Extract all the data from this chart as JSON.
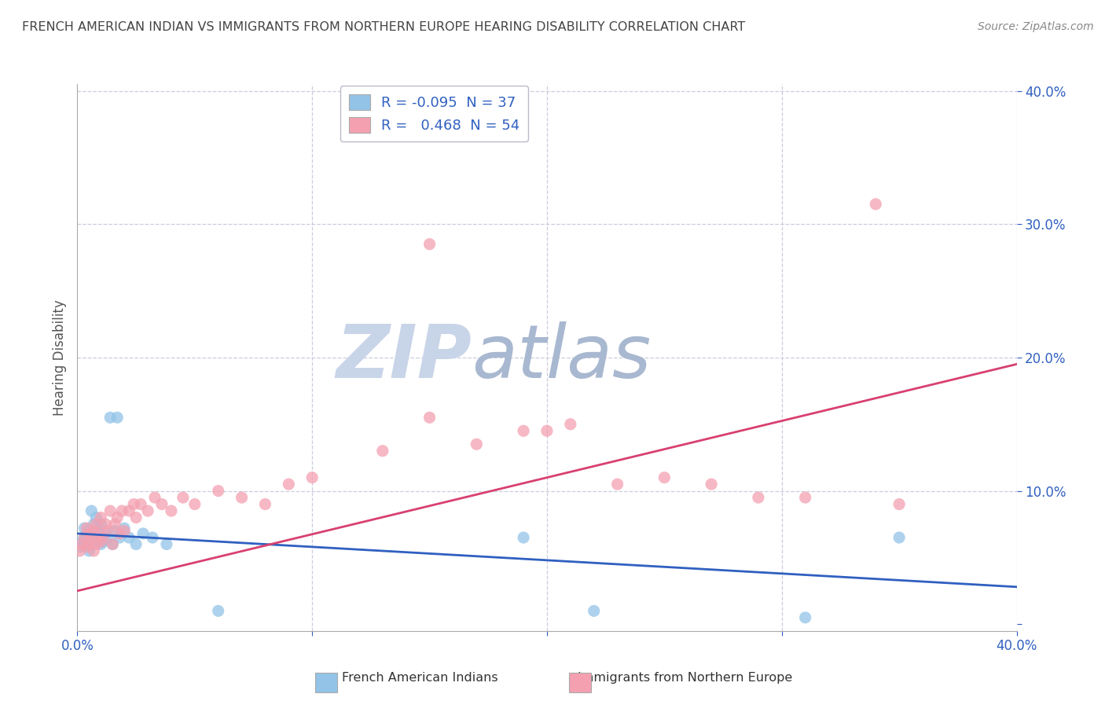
{
  "title": "FRENCH AMERICAN INDIAN VS IMMIGRANTS FROM NORTHERN EUROPE HEARING DISABILITY CORRELATION CHART",
  "source": "Source: ZipAtlas.com",
  "ylabel": "Hearing Disability",
  "xlim": [
    0.0,
    0.4
  ],
  "ylim": [
    -0.005,
    0.405
  ],
  "legend_R1": "-0.095",
  "legend_N1": "37",
  "legend_R2": "0.468",
  "legend_N2": "54",
  "blue_color": "#93c4e8",
  "pink_color": "#f4a0b0",
  "blue_line_color": "#3060c0",
  "pink_line_color": "#d84070",
  "text_color": "#3060c0",
  "title_color": "#444444",
  "watermark_ZIP_color": "#c8d4e8",
  "watermark_atlas_color": "#a8b8d0",
  "background_color": "#ffffff",
  "grid_color": "#ccccdd",
  "blue_line_x": [
    0.0,
    0.4
  ],
  "blue_line_y": [
    0.068,
    0.028
  ],
  "pink_line_x": [
    0.0,
    0.4
  ],
  "pink_line_y": [
    0.025,
    0.195
  ],
  "blue_scatter_x": [
    0.001,
    0.002,
    0.003,
    0.003,
    0.004,
    0.004,
    0.005,
    0.005,
    0.006,
    0.006,
    0.007,
    0.007,
    0.008,
    0.008,
    0.009,
    0.009,
    0.01,
    0.01,
    0.011,
    0.012,
    0.013,
    0.014,
    0.015,
    0.016,
    0.017,
    0.018,
    0.02,
    0.022,
    0.025,
    0.028,
    0.032,
    0.038,
    0.06,
    0.19,
    0.22,
    0.31,
    0.35
  ],
  "blue_scatter_y": [
    0.058,
    0.062,
    0.065,
    0.072,
    0.06,
    0.068,
    0.055,
    0.07,
    0.085,
    0.065,
    0.075,
    0.06,
    0.068,
    0.08,
    0.065,
    0.07,
    0.06,
    0.075,
    0.062,
    0.068,
    0.065,
    0.155,
    0.06,
    0.07,
    0.155,
    0.065,
    0.072,
    0.065,
    0.06,
    0.068,
    0.065,
    0.06,
    0.01,
    0.065,
    0.01,
    0.005,
    0.065
  ],
  "pink_scatter_x": [
    0.001,
    0.002,
    0.003,
    0.004,
    0.004,
    0.005,
    0.005,
    0.006,
    0.007,
    0.007,
    0.008,
    0.008,
    0.009,
    0.01,
    0.01,
    0.011,
    0.012,
    0.013,
    0.014,
    0.015,
    0.016,
    0.017,
    0.018,
    0.019,
    0.02,
    0.022,
    0.024,
    0.025,
    0.027,
    0.03,
    0.033,
    0.036,
    0.04,
    0.045,
    0.05,
    0.06,
    0.07,
    0.08,
    0.09,
    0.1,
    0.13,
    0.15,
    0.17,
    0.19,
    0.21,
    0.23,
    0.25,
    0.27,
    0.29,
    0.31,
    0.15,
    0.2,
    0.35,
    0.34
  ],
  "pink_scatter_y": [
    0.055,
    0.06,
    0.065,
    0.058,
    0.072,
    0.06,
    0.068,
    0.065,
    0.07,
    0.055,
    0.075,
    0.06,
    0.068,
    0.062,
    0.08,
    0.065,
    0.075,
    0.07,
    0.085,
    0.06,
    0.075,
    0.08,
    0.068,
    0.085,
    0.07,
    0.085,
    0.09,
    0.08,
    0.09,
    0.085,
    0.095,
    0.09,
    0.085,
    0.095,
    0.09,
    0.1,
    0.095,
    0.09,
    0.105,
    0.11,
    0.13,
    0.285,
    0.135,
    0.145,
    0.15,
    0.105,
    0.11,
    0.105,
    0.095,
    0.095,
    0.155,
    0.145,
    0.09,
    0.315
  ]
}
